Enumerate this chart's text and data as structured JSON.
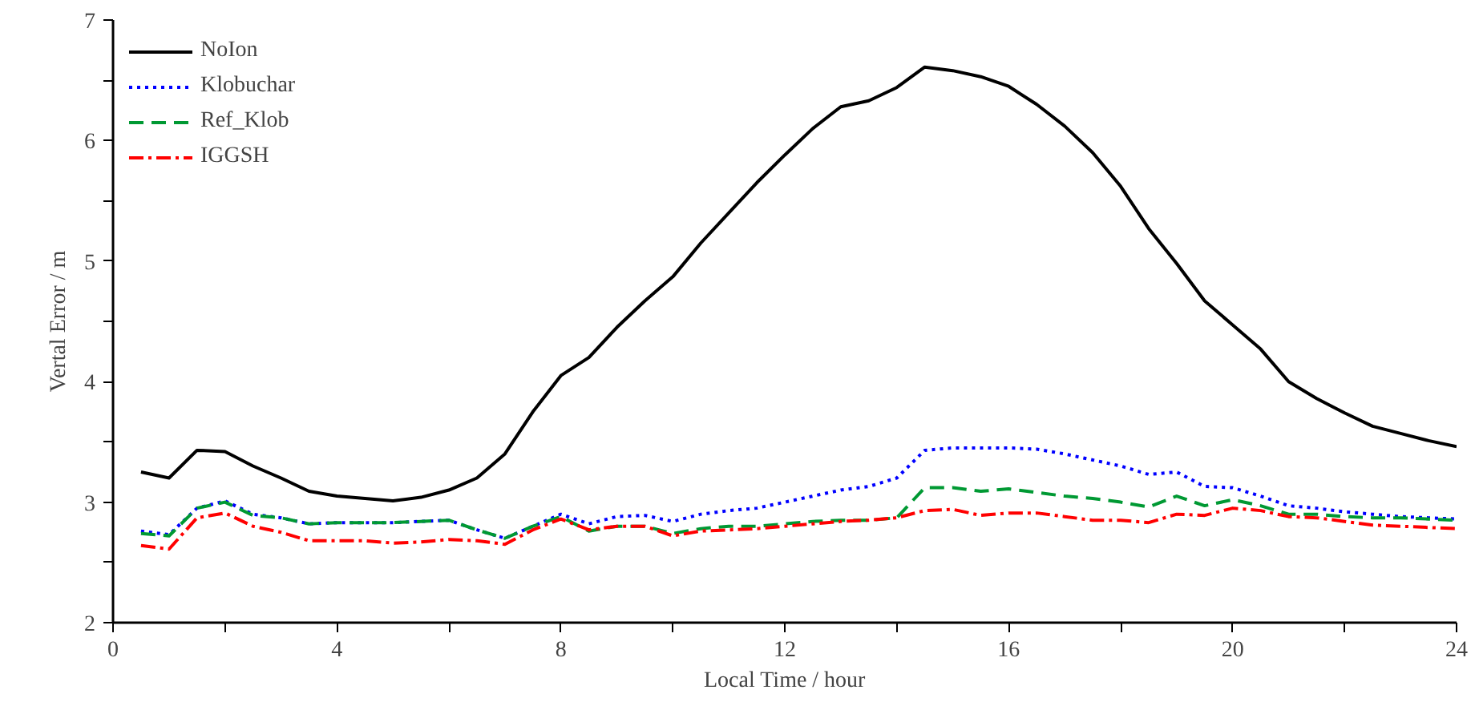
{
  "chart_data": {
    "type": "line",
    "xlabel": "Local Time / hour",
    "ylabel": "Vertal Error / m",
    "x": [
      0.5,
      1,
      1.5,
      2,
      2.5,
      3,
      3.5,
      4,
      4.5,
      5,
      5.5,
      6,
      6.5,
      7,
      7.5,
      8,
      8.5,
      9,
      9.5,
      10,
      10.5,
      11,
      11.5,
      12,
      12.5,
      13,
      13.5,
      14,
      14.5,
      15,
      15.5,
      16,
      16.5,
      17,
      17.5,
      18,
      18.5,
      19,
      19.5,
      20,
      20.5,
      21,
      21.5,
      22,
      22.5,
      23,
      23.5,
      24
    ],
    "series": [
      {
        "name": "NoIon",
        "color": "#000000",
        "line_style": "solid",
        "values": [
          3.25,
          3.2,
          3.43,
          3.42,
          3.3,
          3.2,
          3.09,
          3.05,
          3.03,
          3.01,
          3.04,
          3.1,
          3.2,
          3.4,
          3.75,
          4.05,
          4.2,
          4.45,
          4.67,
          4.87,
          5.15,
          5.4,
          5.65,
          5.88,
          6.1,
          6.28,
          6.33,
          6.44,
          6.61,
          6.58,
          6.53,
          6.45,
          6.3,
          6.12,
          5.9,
          5.62,
          5.27,
          4.98,
          4.67,
          4.47,
          4.27,
          4.0,
          3.86,
          3.74,
          3.63,
          3.57,
          3.51,
          3.46
        ]
      },
      {
        "name": "Klobuchar",
        "color": "#0000ff",
        "line_style": "dotted",
        "values": [
          2.76,
          2.73,
          2.95,
          3.01,
          2.9,
          2.87,
          2.82,
          2.83,
          2.83,
          2.83,
          2.84,
          2.85,
          2.77,
          2.7,
          2.8,
          2.9,
          2.82,
          2.88,
          2.89,
          2.84,
          2.9,
          2.93,
          2.95,
          3.0,
          3.05,
          3.1,
          3.13,
          3.2,
          3.43,
          3.45,
          3.45,
          3.45,
          3.44,
          3.4,
          3.35,
          3.3,
          3.23,
          3.25,
          3.13,
          3.12,
          3.05,
          2.97,
          2.95,
          2.92,
          2.9,
          2.88,
          2.87,
          2.86
        ]
      },
      {
        "name": "Ref_Klob",
        "color": "#009933",
        "line_style": "dashed",
        "values": [
          2.74,
          2.72,
          2.95,
          3.0,
          2.89,
          2.87,
          2.82,
          2.83,
          2.83,
          2.83,
          2.84,
          2.85,
          2.77,
          2.7,
          2.8,
          2.88,
          2.76,
          2.8,
          2.8,
          2.74,
          2.78,
          2.8,
          2.8,
          2.82,
          2.84,
          2.85,
          2.85,
          2.87,
          3.12,
          3.12,
          3.09,
          3.11,
          3.08,
          3.05,
          3.03,
          3.0,
          2.96,
          3.05,
          2.97,
          3.02,
          2.97,
          2.9,
          2.9,
          2.88,
          2.87,
          2.87,
          2.86,
          2.85
        ]
      },
      {
        "name": "IGGSH",
        "color": "#ff0000",
        "line_style": "dashdot",
        "values": [
          2.64,
          2.61,
          2.87,
          2.91,
          2.8,
          2.75,
          2.68,
          2.68,
          2.68,
          2.66,
          2.67,
          2.69,
          2.68,
          2.65,
          2.77,
          2.86,
          2.77,
          2.8,
          2.8,
          2.72,
          2.76,
          2.77,
          2.78,
          2.8,
          2.82,
          2.84,
          2.85,
          2.87,
          2.93,
          2.94,
          2.89,
          2.91,
          2.91,
          2.88,
          2.85,
          2.85,
          2.83,
          2.9,
          2.89,
          2.95,
          2.93,
          2.88,
          2.87,
          2.84,
          2.81,
          2.8,
          2.79,
          2.78
        ]
      }
    ],
    "xlim": [
      0,
      24
    ],
    "ylim": [
      2,
      7
    ],
    "xticks": [
      0,
      {
        "value": 2,
        "label": null
      },
      4,
      {
        "value": 6,
        "label": null
      },
      8,
      {
        "value": 10,
        "label": null
      },
      12,
      {
        "value": 14,
        "label": null
      },
      16,
      {
        "value": 18,
        "label": null
      },
      20,
      {
        "value": 22,
        "label": null
      },
      24
    ],
    "yticks": [
      2,
      {
        "value": 2.5,
        "label": null
      },
      3,
      {
        "value": 3.5,
        "label": null
      },
      4,
      {
        "value": 4.5,
        "label": null
      },
      5,
      {
        "value": 5.5,
        "label": null
      },
      6,
      {
        "value": 6.5,
        "label": null
      },
      7
    ],
    "grid": false,
    "legend": "top left"
  }
}
